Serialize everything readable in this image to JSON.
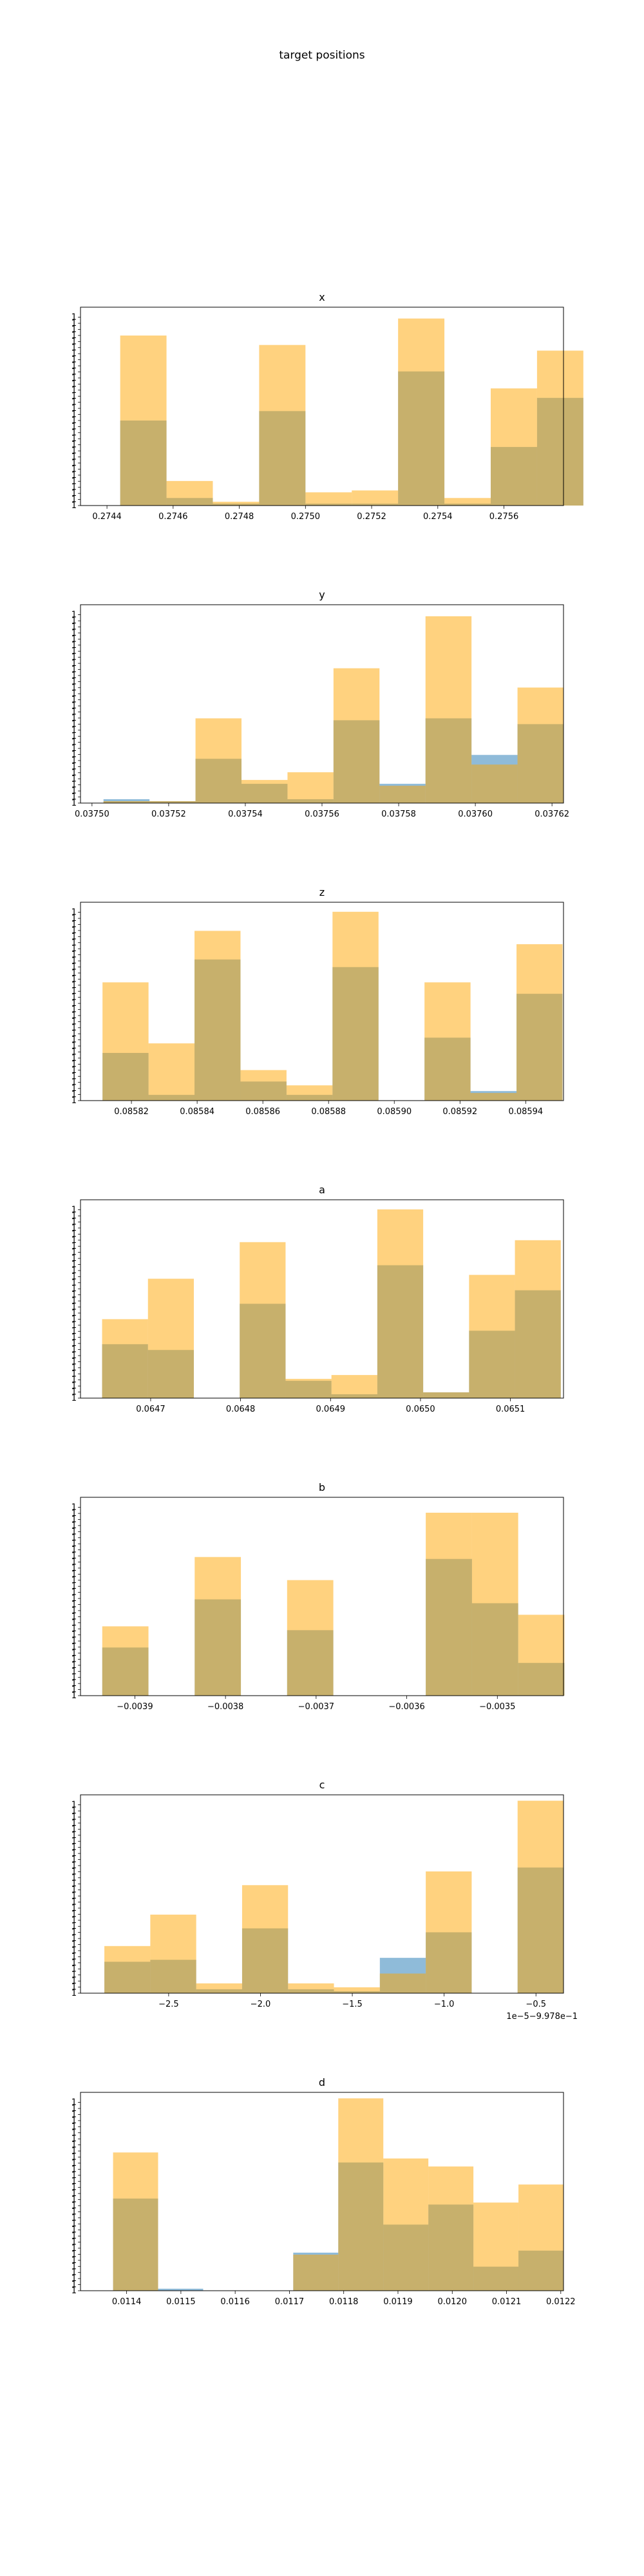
{
  "figure": {
    "title": "target positions"
  },
  "colors": {
    "series_a": "#1f77b4",
    "series_b": "#ffa500",
    "alpha": 0.5
  },
  "chart_data": [
    {
      "type": "bar",
      "title": "x",
      "xlim": [
        0.27432,
        0.27578
      ],
      "xticks": [
        0.2744,
        0.2746,
        0.2748,
        0.275,
        0.2752,
        0.2754,
        0.2756
      ],
      "xtick_labels": [
        "0.2744",
        "0.2746",
        "0.2748",
        "0.2750",
        "0.2752",
        "0.2754",
        "0.2756"
      ],
      "bin_edges": [
        0.27444,
        0.27458,
        0.27472,
        0.27486,
        0.275,
        0.27514,
        0.27528,
        0.27542,
        0.27556,
        0.2757
      ],
      "series": [
        {
          "values": [
            45,
            4,
            1,
            50,
            1,
            1,
            71,
            1,
            31,
            57
          ]
        },
        {
          "values": [
            90,
            13,
            2,
            85,
            7,
            8,
            99,
            4,
            62,
            82
          ]
        }
      ],
      "ymax": 105
    },
    {
      "type": "bar",
      "title": "y",
      "xlim": [
        0.037497,
        0.037623
      ],
      "xticks": [
        0.0375,
        0.03752,
        0.03754,
        0.03756,
        0.03758,
        0.0376,
        0.03762
      ],
      "xtick_labels": [
        "0.03750",
        "0.03752",
        "0.03754",
        "0.03756",
        "0.03758",
        "0.03760",
        "0.03762"
      ],
      "bin_edges": [
        0.037503,
        0.037515,
        0.037527,
        0.037539,
        0.037551,
        0.037563,
        0.037575,
        0.037587,
        0.037599,
        0.037611
      ],
      "series": [
        {
          "values": [
            2,
            1,
            23,
            10,
            2,
            43,
            10,
            44,
            25,
            41
          ]
        },
        {
          "values": [
            1,
            1,
            44,
            12,
            16,
            70,
            9,
            97,
            20,
            60
          ]
        }
      ],
      "ymax": 103
    },
    {
      "type": "bar",
      "title": "z",
      "xlim": [
        0.0858045,
        0.0859515
      ],
      "xticks": [
        0.08582,
        0.08584,
        0.08586,
        0.08588,
        0.0859,
        0.08592,
        0.08594
      ],
      "xtick_labels": [
        "0.08582",
        "0.08584",
        "0.08586",
        "0.08588",
        "0.08590",
        "0.08592",
        "0.08594"
      ],
      "bin_edges": [
        0.0858112,
        0.0858252,
        0.0858392,
        0.0858532,
        0.0858672,
        0.0858812,
        0.0858952,
        0.0859092,
        0.0859232,
        0.0859372
      ],
      "series": [
        {
          "values": [
            25,
            3,
            74,
            10,
            3,
            70,
            0,
            33,
            5,
            56
          ]
        },
        {
          "values": [
            62,
            30,
            89,
            16,
            8,
            99,
            0,
            62,
            4,
            82
          ]
        }
      ],
      "ymax": 104
    },
    {
      "type": "bar",
      "title": "a",
      "xlim": [
        0.064622,
        0.065159
      ],
      "xticks": [
        0.0647,
        0.0648,
        0.0649,
        0.065,
        0.0651
      ],
      "xtick_labels": [
        "0.0647",
        "0.0648",
        "0.0649",
        "0.0650",
        "0.0651"
      ],
      "bin_edges": [
        0.064646,
        0.064697,
        0.064748,
        0.064799,
        0.06485,
        0.064901,
        0.064952,
        0.065003,
        0.065054,
        0.065105
      ],
      "series": [
        {
          "values": [
            28,
            25,
            0,
            49,
            9,
            2,
            69,
            3,
            35,
            56
          ]
        },
        {
          "values": [
            41,
            62,
            0,
            81,
            10,
            12,
            98,
            3,
            64,
            82
          ]
        }
      ],
      "ymax": 103
    },
    {
      "type": "bar",
      "title": "b",
      "xlim": [
        -0.00396,
        -0.003427
      ],
      "xticks": [
        -0.0039,
        -0.0038,
        -0.0037,
        -0.0036,
        -0.0035
      ],
      "xtick_labels": [
        "−0.0039",
        "−0.0038",
        "−0.0037",
        "−0.0036",
        "−0.0035"
      ],
      "bin_edges": [
        -0.003936,
        -0.003885,
        -0.003834,
        -0.003783,
        -0.003732,
        -0.003681,
        -0.00363,
        -0.003579,
        -0.003528,
        -0.003477
      ],
      "series": [
        {
          "values": [
            25,
            0,
            50,
            0,
            34,
            0,
            0,
            71,
            48,
            17
          ]
        },
        {
          "values": [
            36,
            0,
            72,
            0,
            60,
            0,
            0,
            95,
            95,
            42
          ]
        }
      ],
      "ymax": 103
    },
    {
      "type": "bar",
      "title": "c",
      "xlim": [
        -2.98,
        -0.35
      ],
      "xticks": [
        -2.5,
        -2.0,
        -1.5,
        -1.0,
        -0.5
      ],
      "xtick_labels": [
        "−2.5",
        "−2.0",
        "−1.5",
        "−1.0",
        "−0.5"
      ],
      "bin_edges": [
        -2.85,
        -2.35,
        -1.85,
        -1.35,
        -0.85,
        -0.35
      ],
      "bar_edges_note": "",
      "bin_edges_full": [
        -2.85,
        -2.6,
        -2.35,
        -2.1,
        -1.85,
        -1.6,
        -1.35,
        -1.1,
        -0.85,
        -0.6,
        -0.35
      ],
      "series": [
        {
          "values": [
            16,
            17,
            2,
            33,
            2,
            1,
            18,
            31,
            0,
            64
          ]
        },
        {
          "values": [
            24,
            40,
            5,
            55,
            5,
            3,
            10,
            62,
            0,
            98
          ]
        }
      ],
      "ymax": 101,
      "offset_text": "1e−5−9.978e−1"
    },
    {
      "type": "bar",
      "title": "d",
      "xlim": [
        0.011315,
        0.012205
      ],
      "xticks": [
        0.0114,
        0.0115,
        0.0116,
        0.0117,
        0.0118,
        0.0119,
        0.012,
        0.0121,
        0.0122
      ],
      "xtick_labels": [
        "0.0114",
        "0.0115",
        "0.0116",
        "0.0117",
        "0.0118",
        "0.0119",
        "0.0120",
        "0.0121",
        "0.0122"
      ],
      "bin_edges": [
        0.011375,
        0.011458,
        0.011541,
        0.011624,
        0.011707,
        0.01179,
        0.011873,
        0.011956,
        0.012039,
        0.012122
      ],
      "series": [
        {
          "values": [
            46,
            1,
            0,
            0,
            19,
            64,
            33,
            43,
            12,
            20
          ]
        },
        {
          "values": [
            69,
            0,
            0,
            0,
            18,
            96,
            66,
            62,
            44,
            53
          ]
        }
      ],
      "ymax": 99
    }
  ]
}
